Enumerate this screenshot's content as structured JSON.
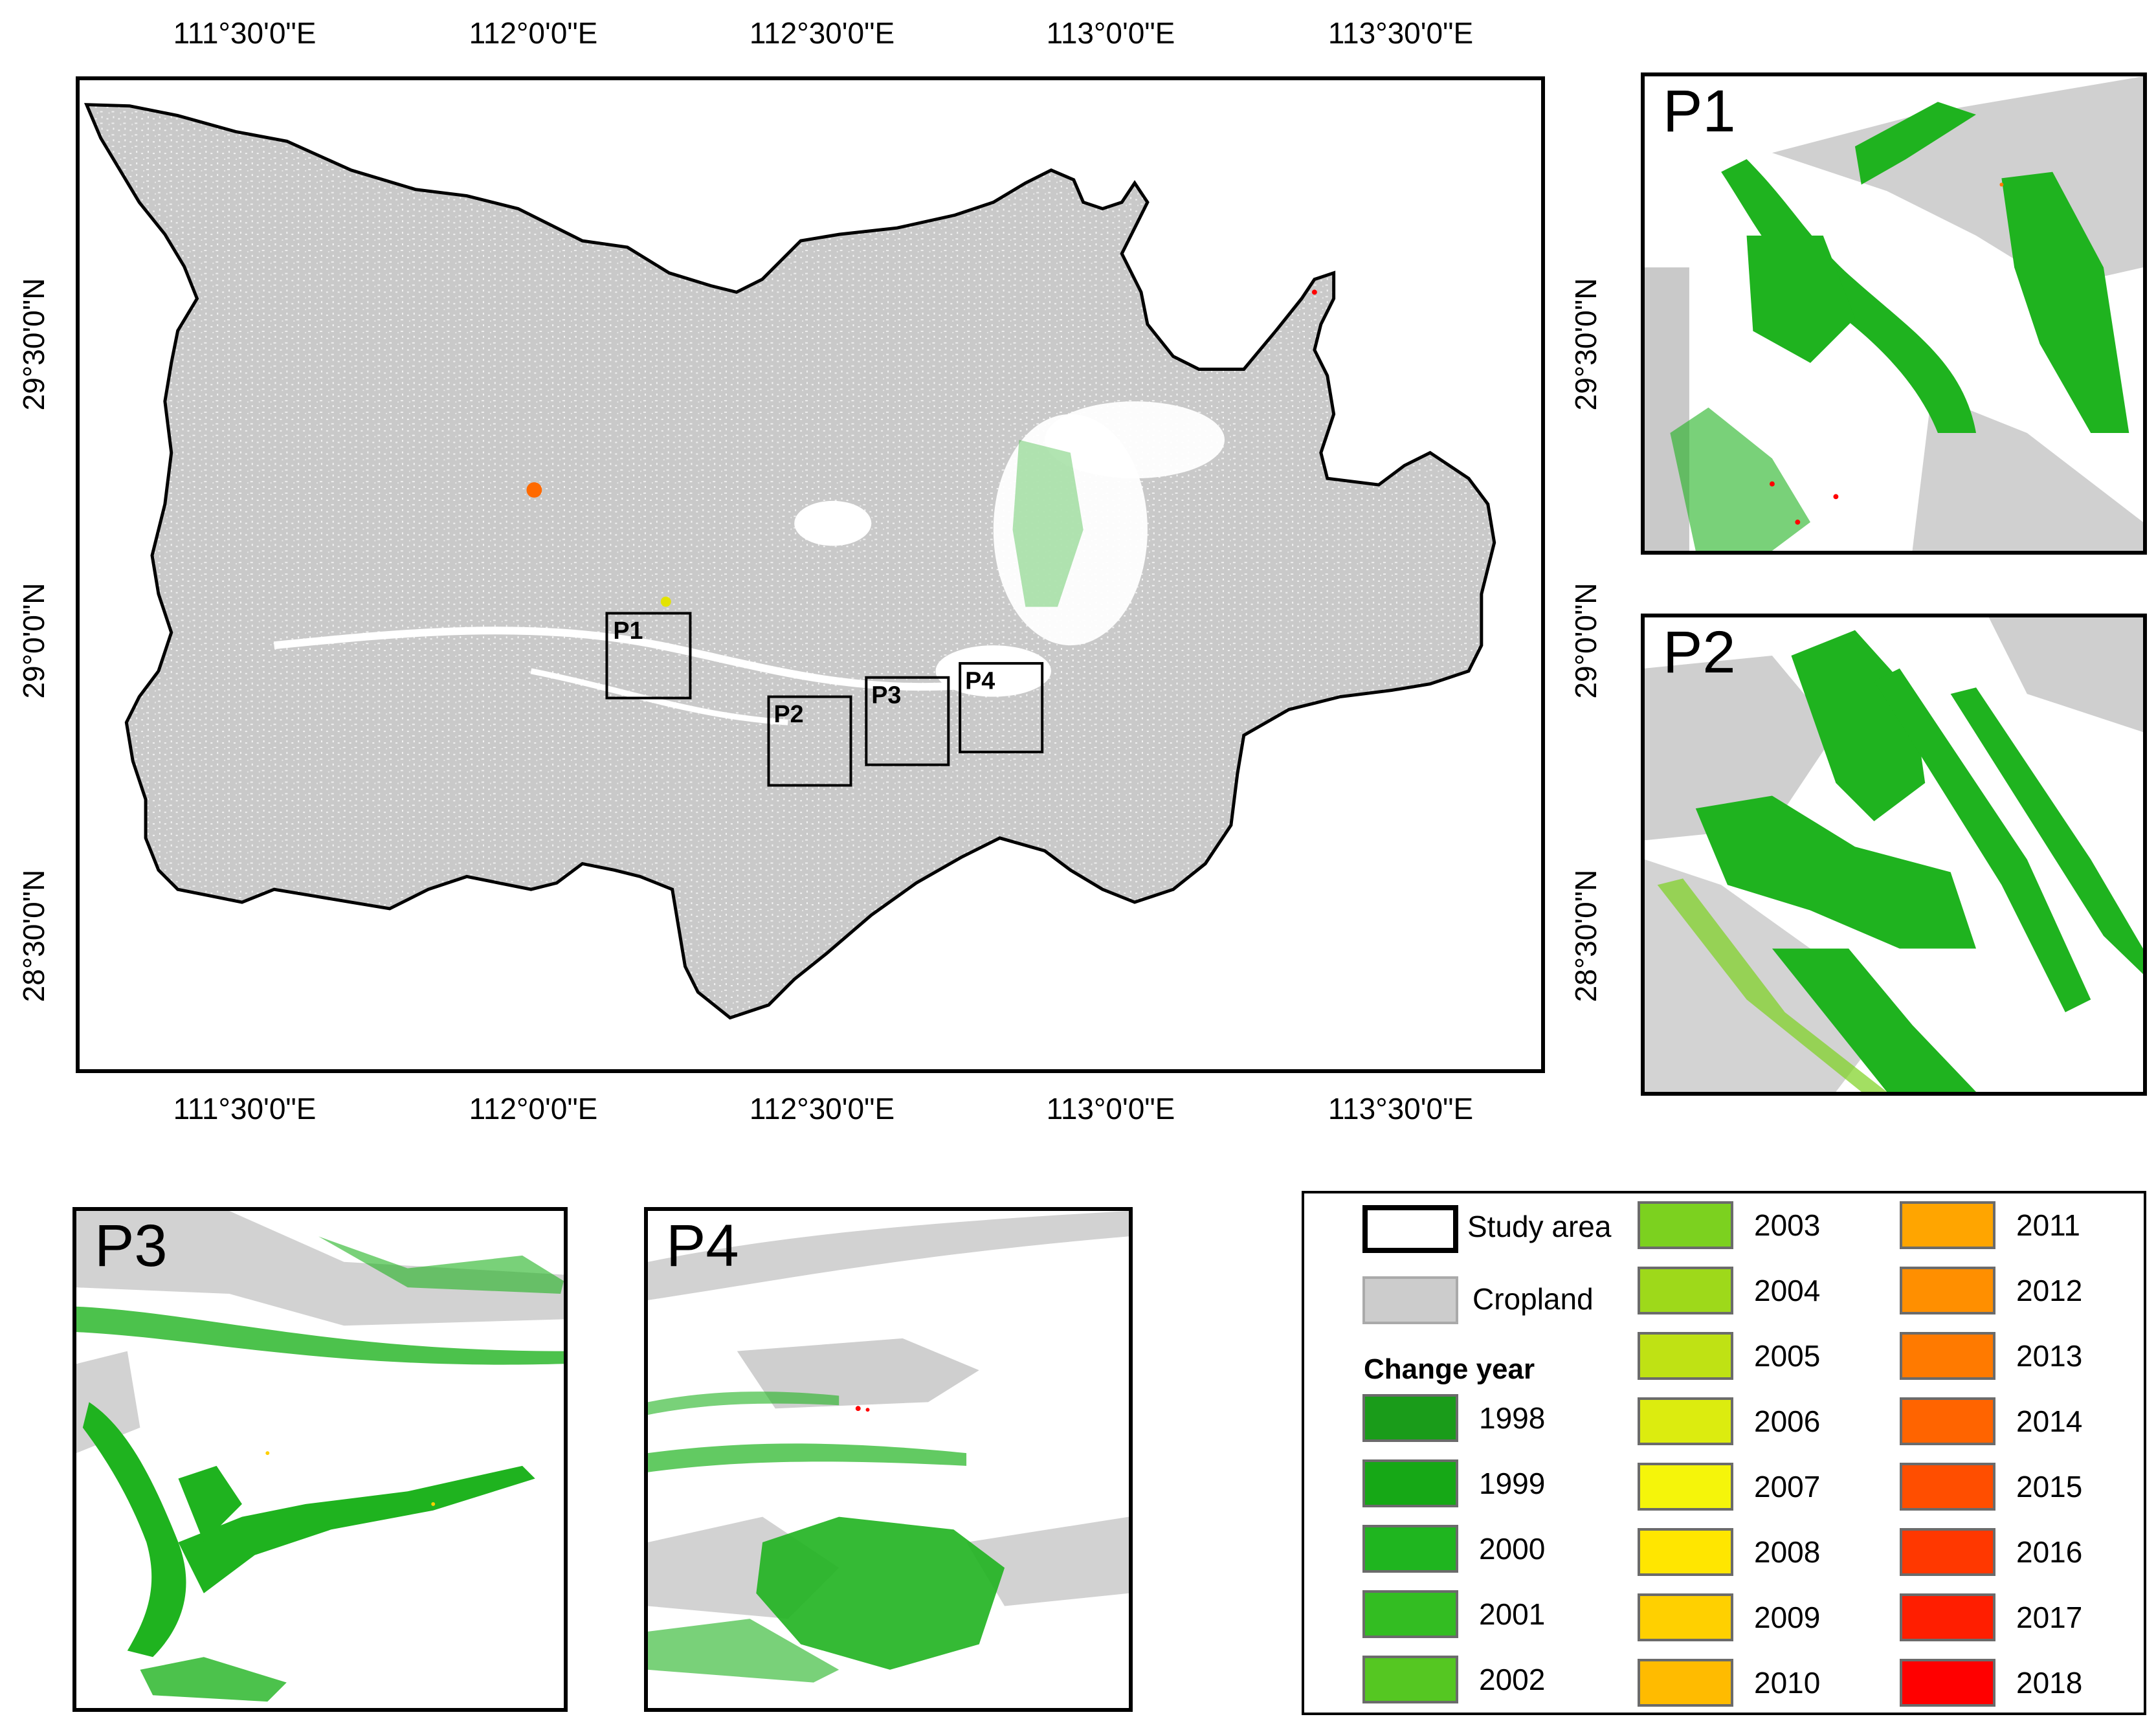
{
  "map": {
    "lon_labels": [
      "111°30'0\"E",
      "112°0'0\"E",
      "112°30'0\"E",
      "113°0'0\"E",
      "113°30'0\"E"
    ],
    "lat_labels": [
      "29°30'0\"N",
      "29°0'0\"N",
      "28°30'0\"N"
    ],
    "boxes": [
      "P1",
      "P2",
      "P3",
      "P4"
    ]
  },
  "panels": [
    {
      "label": "P1",
      "lat_labels": [
        "29°30'0\"N"
      ]
    },
    {
      "label": "P2",
      "lat_labels": [
        "29°0'0\"N",
        "28°30'0\"N"
      ]
    },
    {
      "label": "P3"
    },
    {
      "label": "P4"
    }
  ],
  "legend": {
    "study_area": "Study area",
    "cropland": "Cropland",
    "change_year_title": "Change year",
    "colors": {
      "study_area": "#ffffff",
      "cropland": "#cccccc",
      "change_green": "#1fb31f",
      "change_red": "#ff0000"
    },
    "years": [
      {
        "year": "1998",
        "color": "#1a9c1a"
      },
      {
        "year": "1999",
        "color": "#16a816"
      },
      {
        "year": "2000",
        "color": "#1fb51f"
      },
      {
        "year": "2001",
        "color": "#33bd22"
      },
      {
        "year": "2002",
        "color": "#55c722"
      },
      {
        "year": "2003",
        "color": "#7cd11f"
      },
      {
        "year": "2004",
        "color": "#9ed91a"
      },
      {
        "year": "2005",
        "color": "#bfe214"
      },
      {
        "year": "2006",
        "color": "#dcec0f"
      },
      {
        "year": "2007",
        "color": "#f5f50a"
      },
      {
        "year": "2008",
        "color": "#ffe600"
      },
      {
        "year": "2009",
        "color": "#ffd000"
      },
      {
        "year": "2010",
        "color": "#ffbb00"
      },
      {
        "year": "2011",
        "color": "#ffa500"
      },
      {
        "year": "2012",
        "color": "#ff8f00"
      },
      {
        "year": "2013",
        "color": "#ff7a00"
      },
      {
        "year": "2014",
        "color": "#ff6400"
      },
      {
        "year": "2015",
        "color": "#ff4e00"
      },
      {
        "year": "2016",
        "color": "#ff3800"
      },
      {
        "year": "2017",
        "color": "#ff1e00"
      },
      {
        "year": "2018",
        "color": "#ff0000"
      }
    ]
  }
}
